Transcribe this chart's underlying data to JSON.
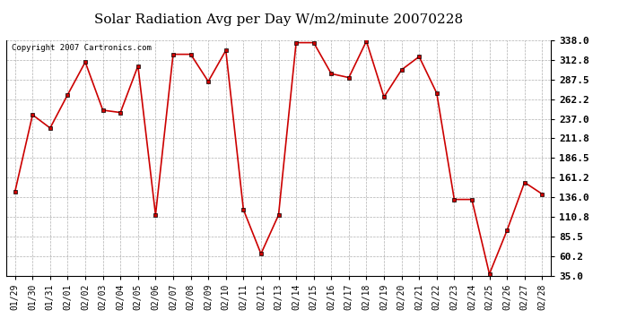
{
  "title": "Solar Radiation Avg per Day W/m2/minute 20070228",
  "copyright": "Copyright 2007 Cartronics.com",
  "labels": [
    "01/29",
    "01/30",
    "01/31",
    "02/01",
    "02/02",
    "02/03",
    "02/04",
    "02/05",
    "02/06",
    "02/07",
    "02/08",
    "02/09",
    "02/10",
    "02/11",
    "02/12",
    "02/13",
    "02/14",
    "02/15",
    "02/16",
    "02/17",
    "02/18",
    "02/19",
    "02/20",
    "02/21",
    "02/22",
    "02/23",
    "02/24",
    "02/25",
    "02/26",
    "02/27",
    "02/28"
  ],
  "values": [
    143,
    242,
    225,
    268,
    310,
    248,
    245,
    305,
    113,
    320,
    320,
    285,
    325,
    120,
    63,
    113,
    335,
    335,
    295,
    290,
    337,
    265,
    300,
    317,
    270,
    133,
    133,
    37,
    93,
    155,
    140
  ],
  "line_color": "#cc0000",
  "marker_color": "#cc0000",
  "bg_color": "#ffffff",
  "grid_color": "#b0b0b0",
  "ylim_min": 35.0,
  "ylim_max": 338.0,
  "yticks": [
    35.0,
    60.2,
    85.5,
    110.8,
    136.0,
    161.2,
    186.5,
    211.8,
    237.0,
    262.2,
    287.5,
    312.8,
    338.0
  ],
  "title_fontsize": 11,
  "copyright_fontsize": 6.5,
  "tick_fontsize": 7,
  "ytick_fontsize": 8
}
